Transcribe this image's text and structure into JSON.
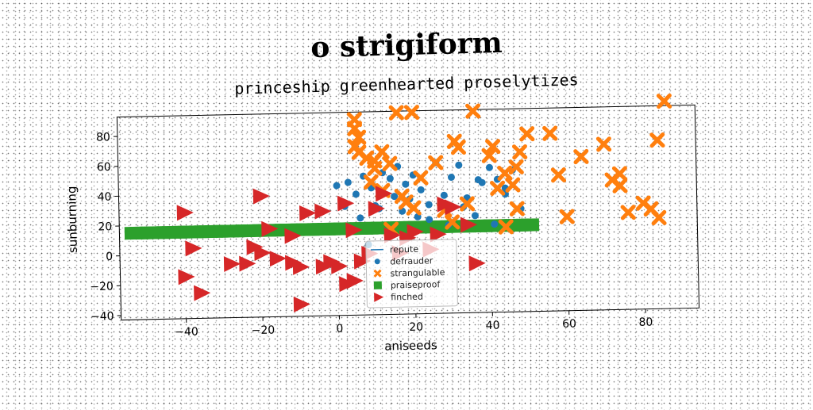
{
  "chart_data": {
    "type": "scatter",
    "title": "o strigiform",
    "subtitle": "princeship greenhearted proselytizes",
    "xlabel": "aniseeds",
    "ylabel": "sunburning",
    "xlim": [
      -57,
      94
    ],
    "ylim": [
      -43,
      93
    ],
    "xticks": [
      -40,
      -20,
      0,
      20,
      40,
      60,
      80
    ],
    "yticks": [
      -40,
      -20,
      0,
      20,
      40,
      60,
      80
    ],
    "legend_position": "lower-center",
    "series": [
      {
        "name": "repute",
        "marker": "line",
        "color": "#1f77b4",
        "points": []
      },
      {
        "name": "defrauder",
        "marker": "circle",
        "color": "#1f77b4",
        "points": [
          [
            0,
            44
          ],
          [
            3,
            46
          ],
          [
            5,
            38
          ],
          [
            7,
            50
          ],
          [
            9,
            42
          ],
          [
            10,
            30
          ],
          [
            12,
            52
          ],
          [
            14,
            48
          ],
          [
            16,
            56
          ],
          [
            18,
            44
          ],
          [
            20,
            50
          ],
          [
            22,
            40
          ],
          [
            24,
            30
          ],
          [
            26,
            58
          ],
          [
            28,
            36
          ],
          [
            30,
            48
          ],
          [
            32,
            56
          ],
          [
            34,
            34
          ],
          [
            36,
            22
          ],
          [
            38,
            44
          ],
          [
            40,
            54
          ],
          [
            42,
            46
          ],
          [
            44,
            36
          ],
          [
            46,
            52
          ],
          [
            48,
            26
          ],
          [
            2,
            30
          ],
          [
            6,
            22
          ],
          [
            11,
            28
          ],
          [
            15,
            36
          ],
          [
            19,
            34
          ],
          [
            24,
            20
          ],
          [
            29,
            16
          ],
          [
            33,
            28
          ],
          [
            37,
            46
          ],
          [
            41,
            16
          ],
          [
            44,
            40
          ],
          [
            8,
            4
          ],
          [
            13,
            12
          ],
          [
            17,
            26
          ],
          [
            21,
            22
          ]
        ]
      },
      {
        "name": "strangulable",
        "marker": "x",
        "color": "#ff7f0e",
        "points": [
          [
            5,
            88
          ],
          [
            5,
            82
          ],
          [
            6,
            76
          ],
          [
            5,
            70
          ],
          [
            8,
            62
          ],
          [
            10,
            55
          ],
          [
            12,
            66
          ],
          [
            14,
            58
          ],
          [
            9,
            46
          ],
          [
            12,
            40
          ],
          [
            17,
            36
          ],
          [
            18,
            32
          ],
          [
            20,
            28
          ],
          [
            22,
            48
          ],
          [
            26,
            58
          ],
          [
            28,
            26
          ],
          [
            30,
            18
          ],
          [
            31,
            72
          ],
          [
            32,
            68
          ],
          [
            34,
            30
          ],
          [
            36,
            92
          ],
          [
            40,
            62
          ],
          [
            41,
            68
          ],
          [
            42,
            40
          ],
          [
            44,
            50
          ],
          [
            46,
            42
          ],
          [
            47,
            54
          ],
          [
            48,
            64
          ],
          [
            50,
            76
          ],
          [
            47,
            26
          ],
          [
            56,
            76
          ],
          [
            58,
            48
          ],
          [
            60,
            20
          ],
          [
            64,
            60
          ],
          [
            70,
            68
          ],
          [
            72,
            44
          ],
          [
            74,
            48
          ],
          [
            74,
            40
          ],
          [
            76,
            22
          ],
          [
            80,
            28
          ],
          [
            82,
            24
          ],
          [
            84,
            18
          ],
          [
            84,
            70
          ],
          [
            86,
            96
          ],
          [
            14,
            14
          ],
          [
            16,
            92
          ],
          [
            20,
            92
          ],
          [
            10,
            60
          ],
          [
            6,
            66
          ],
          [
            44,
            14
          ]
        ]
      },
      {
        "name": "praiseproof",
        "marker": "square",
        "color": "#2ca02c",
        "points": []
      },
      {
        "name": "finched",
        "marker": "triangle-right",
        "color": "#d62728",
        "points": [
          [
            -40,
            28
          ],
          [
            -38,
            4
          ],
          [
            -40,
            -15
          ],
          [
            -36,
            -26
          ],
          [
            -28,
            -7
          ],
          [
            -24,
            -7
          ],
          [
            -22,
            4
          ],
          [
            -20,
            0
          ],
          [
            -18,
            16
          ],
          [
            -20,
            38
          ],
          [
            -16,
            -4
          ],
          [
            -12,
            -7
          ],
          [
            -12,
            11
          ],
          [
            -10,
            -10
          ],
          [
            -8,
            26
          ],
          [
            -10,
            -35
          ],
          [
            -4,
            27
          ],
          [
            -4,
            -10
          ],
          [
            0,
            -10
          ],
          [
            -2,
            -7
          ],
          [
            2,
            -22
          ],
          [
            4,
            -20
          ],
          [
            6,
            -7
          ],
          [
            4,
            14
          ],
          [
            8,
            -2
          ],
          [
            10,
            28
          ],
          [
            12,
            38
          ],
          [
            14,
            10
          ],
          [
            18,
            8
          ],
          [
            20,
            12
          ],
          [
            24,
            0
          ],
          [
            26,
            10
          ],
          [
            28,
            30
          ],
          [
            30,
            28
          ],
          [
            34,
            16
          ],
          [
            36,
            -10
          ],
          [
            2,
            32
          ],
          [
            16,
            -2
          ]
        ]
      }
    ],
    "praiseproof_band": {
      "x_start": -54,
      "x_end": 51,
      "y": 15
    }
  }
}
